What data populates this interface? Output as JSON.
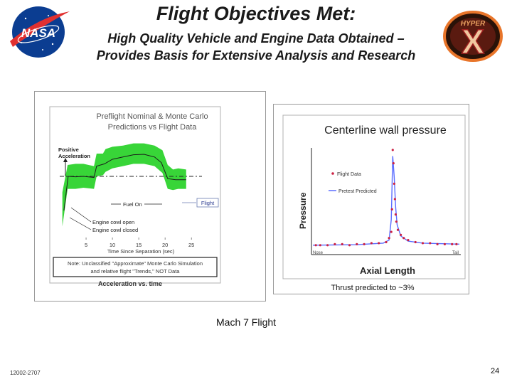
{
  "slide": {
    "title": "Flight Objectives Met:",
    "subtitle_line1": "High Quality Vehicle and Engine Data Obtained –",
    "subtitle_line2": "Provides Basis for Extensive Analysis and Research",
    "mach_label": "Mach 7 Flight",
    "footer_id": "12002-2707",
    "page_number": "24"
  },
  "logos": {
    "nasa_text": "NASA",
    "hyperx_text": "HYPER",
    "hyperx_letter": "X"
  },
  "colors": {
    "nasa_blue": "#0b3d91",
    "nasa_red": "#e03030",
    "monte_carlo_green": "#22d022",
    "pressure_curve": "#5a6cff",
    "flight_data_points": "#cc2244",
    "hyperx_orange": "#e8752a"
  },
  "left_chart": {
    "title_line1": "Preflight Nominal & Monte Carlo",
    "title_line2": "Predictions vs Flight Data",
    "positive_accel_line1": "Positive",
    "positive_accel_line2": "Acceleration",
    "fuel_on": "Fuel On",
    "flight_label": "Flight",
    "cowl_open": "Engine cowl open",
    "cowl_closed": "Engine cowl closed",
    "xlabel": "Time Since Separation (sec)",
    "note_line1": "Note: Unclassified \"Approximate\" Monte Carlo Simulation",
    "note_line2": "and relative flight \"Trends,\" NOT Data",
    "caption": "Acceleration vs. time"
  },
  "chart_data": [
    {
      "type": "line",
      "title": "Preflight Nominal & Monte Carlo Predictions vs Flight Data",
      "xlabel": "Time Since Separation (sec)",
      "ylabel": "Acceleration",
      "x_ticks": [
        "5",
        "10",
        "15",
        "20",
        "25"
      ],
      "xlim": [
        0,
        27
      ],
      "series": [
        {
          "name": "Monte Carlo band (upper)",
          "x": [
            0.5,
            1.5,
            3,
            4.5,
            6.5,
            7,
            8.2,
            8.7,
            10,
            12,
            14,
            16,
            18,
            19.5,
            20.5,
            21.5,
            22.5,
            24
          ],
          "y": [
            -0.7,
            0.5,
            0.55,
            0.55,
            0.45,
            1.0,
            1.0,
            1.2,
            1.3,
            1.35,
            1.45,
            1.45,
            1.35,
            1.15,
            0.5,
            0.3,
            0.35,
            0.3
          ]
        },
        {
          "name": "Monte Carlo band (lower)",
          "x": [
            0.5,
            1.5,
            3,
            4.5,
            6.5,
            7,
            8.2,
            8.7,
            10,
            12,
            14,
            16,
            18,
            19.5,
            20.5,
            21.5,
            22.5,
            24
          ],
          "y": [
            -2.2,
            -0.55,
            -0.55,
            -0.5,
            -0.55,
            0.0,
            0.05,
            0.2,
            0.35,
            0.45,
            0.55,
            0.55,
            0.45,
            0.15,
            -0.55,
            -0.6,
            -0.55,
            -0.55
          ]
        },
        {
          "name": "Nominal prediction",
          "x": [
            0.8,
            1.6,
            3,
            4.5,
            6.5,
            7,
            8.5,
            10,
            12,
            14,
            16,
            18,
            19.3,
            20.5,
            22,
            24
          ],
          "y": [
            -1.5,
            0.0,
            -0.02,
            0.0,
            -0.05,
            0.45,
            0.55,
            0.75,
            0.85,
            0.95,
            0.97,
            0.85,
            0.6,
            -0.1,
            -0.15,
            -0.15
          ]
        },
        {
          "name": "Positive Acceleration reference",
          "x": [
            0,
            27
          ],
          "y": [
            0,
            0
          ]
        }
      ]
    },
    {
      "type": "line",
      "title": "Centerline wall pressure",
      "xlabel": "Axial Length",
      "ylabel": "Pressure",
      "x_ends": [
        "Nose",
        "Tail"
      ],
      "series": [
        {
          "name": "Flight Data",
          "x": [
            0.02,
            0.05,
            0.1,
            0.15,
            0.2,
            0.25,
            0.3,
            0.35,
            0.4,
            0.45,
            0.5,
            0.52,
            0.535,
            0.54,
            0.545,
            0.55,
            0.555,
            0.56,
            0.565,
            0.57,
            0.58,
            0.6,
            0.62,
            0.65,
            0.7,
            0.75,
            0.8,
            0.85,
            0.9,
            0.95,
            0.98
          ],
          "y": [
            0.05,
            0.05,
            0.05,
            0.06,
            0.06,
            0.05,
            0.06,
            0.06,
            0.07,
            0.07,
            0.08,
            0.12,
            0.18,
            0.4,
            0.98,
            0.85,
            0.65,
            0.5,
            0.35,
            0.28,
            0.2,
            0.15,
            0.12,
            0.1,
            0.08,
            0.07,
            0.07,
            0.06,
            0.06,
            0.06,
            0.06
          ]
        },
        {
          "name": "Pretest Predicted",
          "x": [
            0.0,
            0.3,
            0.48,
            0.52,
            0.535,
            0.545,
            0.555,
            0.565,
            0.575,
            0.6,
            0.65,
            0.75,
            1.0
          ],
          "y": [
            0.05,
            0.055,
            0.07,
            0.1,
            0.3,
            0.92,
            0.72,
            0.42,
            0.25,
            0.14,
            0.09,
            0.07,
            0.06
          ]
        }
      ]
    }
  ],
  "right_chart": {
    "title": "Centerline wall pressure",
    "ylabel": "Pressure",
    "xlabel": "Axial Length",
    "nose": "Nose",
    "tail": "Tail",
    "legend_flight": "Flight Data",
    "legend_pred": "Pretest Predicted",
    "caption": "Thrust predicted to ~3%"
  }
}
